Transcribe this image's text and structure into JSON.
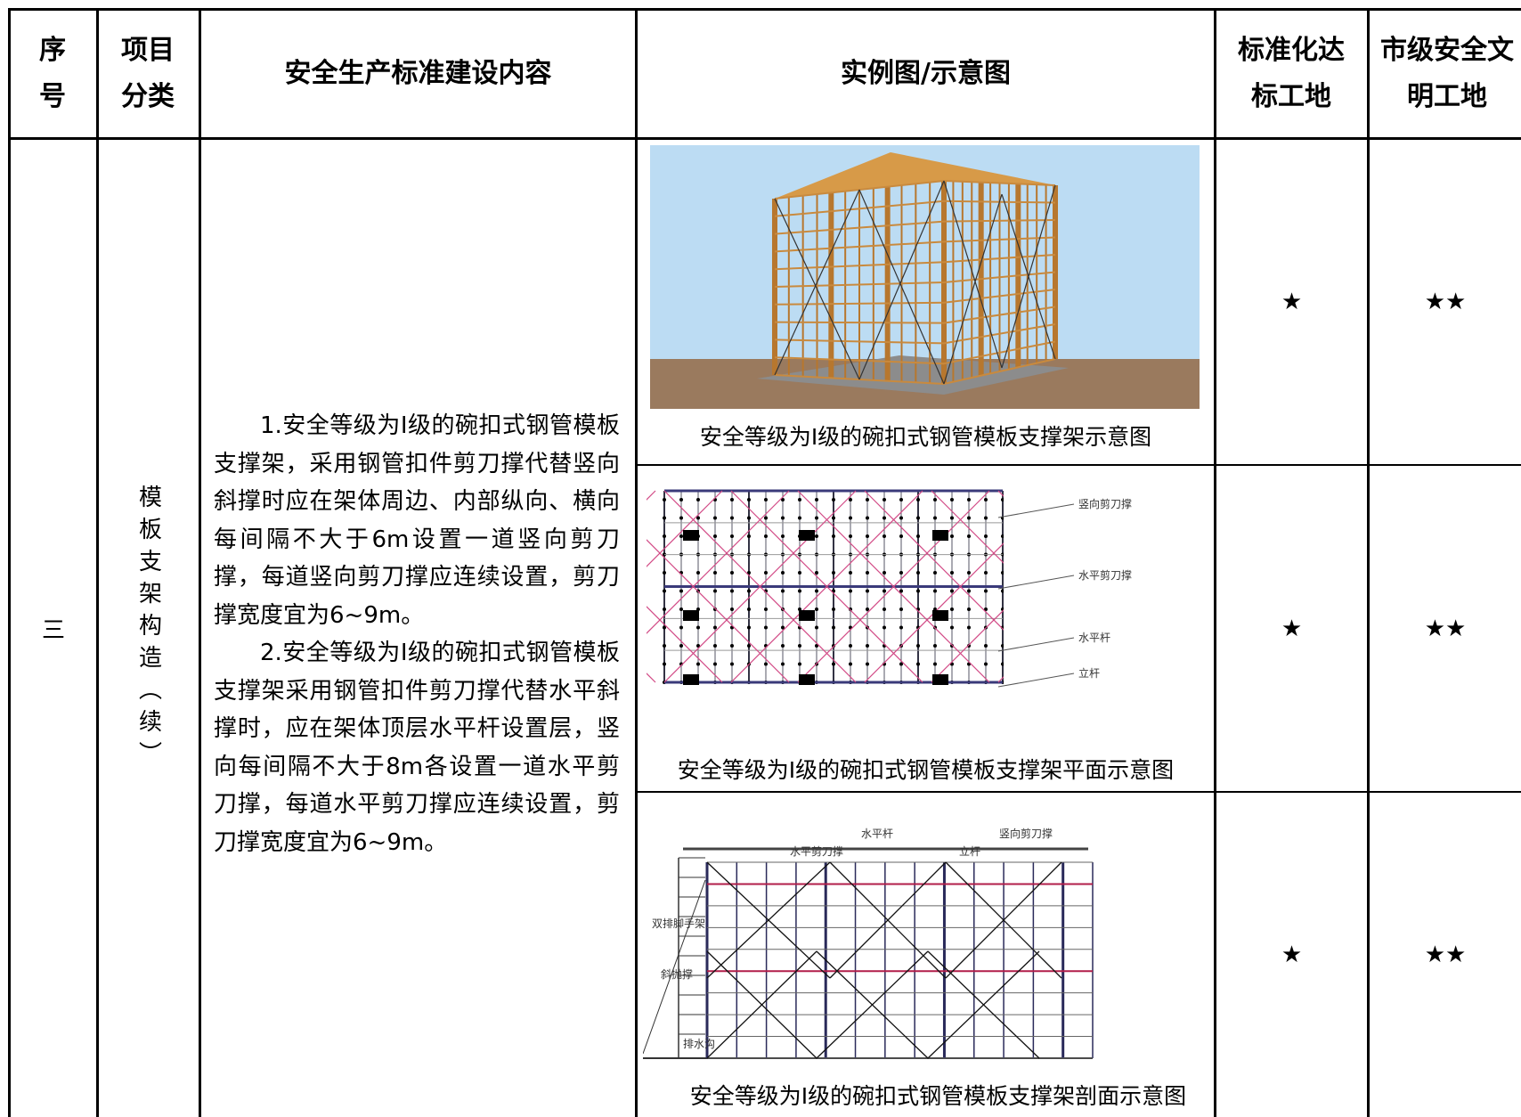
{
  "header": {
    "columns": [
      "序号",
      "项目分类",
      "安全生产标准建设内容",
      "实例图/示意图",
      "标准化达标工地",
      "市级安全文明工地"
    ]
  },
  "rows": [
    {
      "index": "三",
      "category": "模板支架构造（续）",
      "content": [
        "1.安全等级为I级的碗扣式钢管模板支撑架，采用钢管扣件剪刀撑代替竖向斜撑时应在架体周边、内部纵向、横向每间隔不大于6m设置一道竖向剪刀撑，每道竖向剪刀撑应连续设置，剪刀撑宽度宜为6~9m。",
        "2.安全等级为I级的碗扣式钢管模板支撑架采用钢管扣件剪刀撑代替水平斜撑时，应在架体顶层水平杆设置层，竖向每间隔不大于8m各设置一道水平剪刀撑，每道水平剪刀撑应连续设置，剪刀撑宽度宜为6~9m。"
      ],
      "figures": [
        {
          "caption": "安全等级为I级的碗扣式钢管模板支撑架示意图",
          "labels": [],
          "standard": "★",
          "city": "★★"
        },
        {
          "caption": "安全等级为I级的碗扣式钢管模板支撑架平面示意图",
          "labels": [
            "竖向剪刀撑",
            "水平剪刀撑",
            "水平杆",
            "立杆"
          ],
          "standard": "★",
          "city": "★★"
        },
        {
          "caption": "安全等级为I级的碗扣式钢管模板支撑架剖面示意图",
          "labels": [
            "水平杆",
            "竖向剪刀撑",
            "水平剪刀撑",
            "立杆",
            "双排脚手架",
            "斜抛撑",
            "排水沟"
          ],
          "standard": "★",
          "city": "★★"
        }
      ]
    }
  ]
}
